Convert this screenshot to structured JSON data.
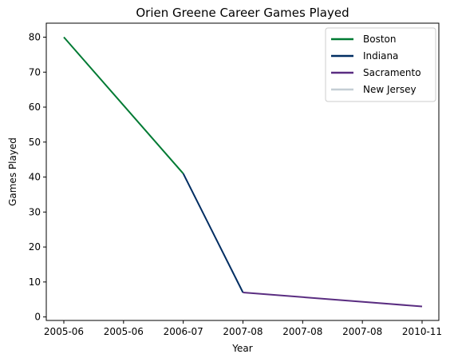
{
  "chart_data": {
    "type": "line",
    "title": "Orien Greene Career Games Played",
    "xlabel": "Year",
    "ylabel": "Games Played",
    "x_tick_labels": [
      "2005-06",
      "2005-06",
      "2006-07",
      "2007-08",
      "2007-08",
      "2007-08",
      "2010-11"
    ],
    "y_ticks": [
      0,
      10,
      20,
      30,
      40,
      50,
      60,
      70,
      80
    ],
    "ylim": [
      -1,
      84
    ],
    "grid": false,
    "legend_position": "top-right",
    "series": [
      {
        "name": "Boston",
        "color": "#007a33",
        "points": [
          {
            "x": "2005-06",
            "y": 80
          },
          {
            "x": "2006-07",
            "y": 41
          }
        ]
      },
      {
        "name": "Indiana",
        "color": "#002d62",
        "points": [
          {
            "x": "2006-07",
            "y": 41
          },
          {
            "x": "2007-08",
            "y": 7
          }
        ]
      },
      {
        "name": "Sacramento",
        "color": "#5a2d81",
        "points": [
          {
            "x": "2007-08",
            "y": 7
          },
          {
            "x": "2010-11",
            "y": 3
          }
        ]
      },
      {
        "name": "New Jersey",
        "color": "#c4ced4",
        "points": []
      }
    ]
  }
}
